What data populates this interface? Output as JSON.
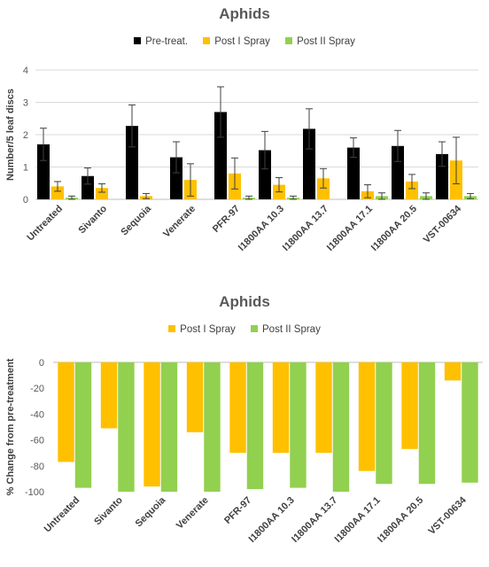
{
  "chart_data": [
    {
      "type": "bar",
      "title": "Aphids",
      "ylabel": "Number/5 leaf discs",
      "xlabel": "",
      "ylim": [
        0,
        4
      ],
      "yticks": [
        0,
        1,
        2,
        3,
        4
      ],
      "grid": true,
      "legend_position": "top",
      "categories": [
        "Untreated",
        "Sivanto",
        "Sequoia",
        "Venerate",
        "PFR-97",
        "I1800AA 10.3",
        "I1800AA 13.7",
        "I1800AA 17.1",
        "I1800AA 20.5",
        "VST-00634"
      ],
      "series": [
        {
          "name": "Pre-treat.",
          "color": "#000000",
          "values": [
            1.7,
            0.72,
            2.27,
            1.3,
            2.7,
            1.52,
            2.18,
            1.6,
            1.65,
            1.4
          ],
          "errors": [
            0.5,
            0.25,
            0.65,
            0.48,
            0.78,
            0.58,
            0.62,
            0.3,
            0.48,
            0.38
          ]
        },
        {
          "name": "Post I Spray",
          "color": "#FFC000",
          "values": [
            0.4,
            0.35,
            0.1,
            0.6,
            0.8,
            0.45,
            0.65,
            0.25,
            0.55,
            1.2
          ],
          "errors": [
            0.15,
            0.13,
            0.08,
            0.5,
            0.48,
            0.22,
            0.3,
            0.2,
            0.22,
            0.72
          ]
        },
        {
          "name": "Post II Spray",
          "color": "#92D050",
          "values": [
            0.05,
            0.0,
            0.0,
            0.0,
            0.05,
            0.05,
            0.0,
            0.1,
            0.1,
            0.1
          ],
          "errors": [
            0.05,
            0.0,
            0.0,
            0.0,
            0.05,
            0.05,
            0.0,
            0.1,
            0.1,
            0.08
          ]
        }
      ]
    },
    {
      "type": "bar",
      "title": "Aphids",
      "ylabel": "% Change from pre-treatment",
      "xlabel": "",
      "ylim": [
        -100,
        0
      ],
      "yticks": [
        0,
        -20,
        -40,
        -60,
        -80,
        -100
      ],
      "grid": false,
      "legend_position": "top",
      "categories": [
        "Untreated",
        "Sivanto",
        "Sequoia",
        "Venerate",
        "PFR-97",
        "I1800AA 10.3",
        "I1800AA 13.7",
        "I1800AA 17.1",
        "I1800AA 20.5",
        "VST-00634"
      ],
      "series": [
        {
          "name": "Post I Spray",
          "color": "#FFC000",
          "values": [
            -77,
            -51,
            -96,
            -54,
            -70,
            -70,
            -70,
            -84,
            -67,
            -14
          ]
        },
        {
          "name": "Post II Spray",
          "color": "#92D050",
          "values": [
            -97,
            -100,
            -100,
            -100,
            -98,
            -97,
            -100,
            -94,
            -94,
            -93
          ]
        }
      ]
    }
  ]
}
